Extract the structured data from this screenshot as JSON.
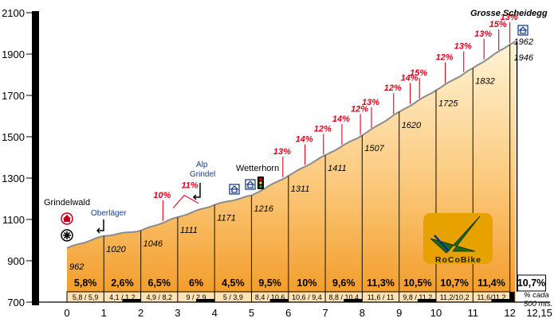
{
  "chart_data": {
    "type": "area",
    "title": "Grosse Scheidegg",
    "ylim": [
      700,
      2100
    ],
    "xlim": [
      0,
      12.15
    ],
    "y_ticks": [
      "700",
      "900",
      "1100",
      "1300",
      "1500",
      "1700",
      "1900",
      "2100"
    ],
    "x_ticks": [
      "0",
      "1",
      "2",
      "3",
      "4",
      "5",
      "6",
      "7",
      "8",
      "9",
      "10",
      "11",
      "12",
      "12,15"
    ],
    "profile": [
      {
        "x": 0,
        "y": 962,
        "label": "962"
      },
      {
        "x": 1,
        "y": 1020,
        "label": "1020"
      },
      {
        "x": 2,
        "y": 1046,
        "label": "1046"
      },
      {
        "x": 3,
        "y": 1111,
        "label": "1111"
      },
      {
        "x": 4,
        "y": 1171,
        "label": "1171"
      },
      {
        "x": 5,
        "y": 1216,
        "label": "1216"
      },
      {
        "x": 6,
        "y": 1311,
        "label": "1311"
      },
      {
        "x": 7,
        "y": 1411,
        "label": "1411"
      },
      {
        "x": 8,
        "y": 1507,
        "label": "1507"
      },
      {
        "x": 9,
        "y": 1620,
        "label": "1620"
      },
      {
        "x": 10,
        "y": 1725,
        "label": "1725"
      },
      {
        "x": 11,
        "y": 1832,
        "label": "1832"
      },
      {
        "x": 12,
        "y": 1946,
        "label": "1946"
      },
      {
        "x": 12.15,
        "y": 1962,
        "label": "1962"
      }
    ],
    "km_gradients": [
      "5,8%",
      "2,6%",
      "6,5%",
      "6%",
      "4,5%",
      "9,5%",
      "10%",
      "9,6%",
      "11,3%",
      "10,5%",
      "10,7%",
      "11,4%",
      "10,7%"
    ],
    "half_km_gradients": [
      "5,8 / 5,9",
      "4,1 / 1,2",
      "4,9 / 8,2",
      "9 / 2,9",
      "5 / 3,9",
      "8,4 / 10,6",
      "10,6 / 9,4",
      "8,8 / 10,4",
      "11,6 / 11",
      "9,8 / 11,2",
      "11,2/10,2",
      "11,6/11,2"
    ],
    "steep_markers": [
      {
        "x": 2.6,
        "label": "10%"
      },
      {
        "x": 3.35,
        "label": "11%"
      },
      {
        "x": 5.85,
        "label": "13%"
      },
      {
        "x": 6.45,
        "label": "14%"
      },
      {
        "x": 6.95,
        "label": "12%"
      },
      {
        "x": 7.45,
        "label": "14%"
      },
      {
        "x": 7.95,
        "label": "12%"
      },
      {
        "x": 8.25,
        "label": "13%"
      },
      {
        "x": 8.85,
        "label": "12%"
      },
      {
        "x": 9.3,
        "label": "14%"
      },
      {
        "x": 9.55,
        "label": "15%"
      },
      {
        "x": 10.25,
        "label": "12%"
      },
      {
        "x": 10.75,
        "label": "13%"
      },
      {
        "x": 11.3,
        "label": "13%"
      },
      {
        "x": 11.7,
        "label": "15%"
      },
      {
        "x": 12.0,
        "label": "13%"
      }
    ],
    "annotations": {
      "start": "Grindelwald",
      "oberlager": "Oberläger",
      "alp_line1": "Alp",
      "alp_line2": "Grindel",
      "wetterhorn": "Wetterhorn",
      "footnote_line1": "% cada",
      "footnote_line2": "500 mts."
    },
    "colors": {
      "fill_top": "#fff3d2",
      "fill_bottom": "#f29a22",
      "outline": "#8c8c8c",
      "steep": "#e0001b",
      "icon_blue": "#1a3d8c"
    }
  },
  "logo": {
    "text": "RoCoBike"
  }
}
